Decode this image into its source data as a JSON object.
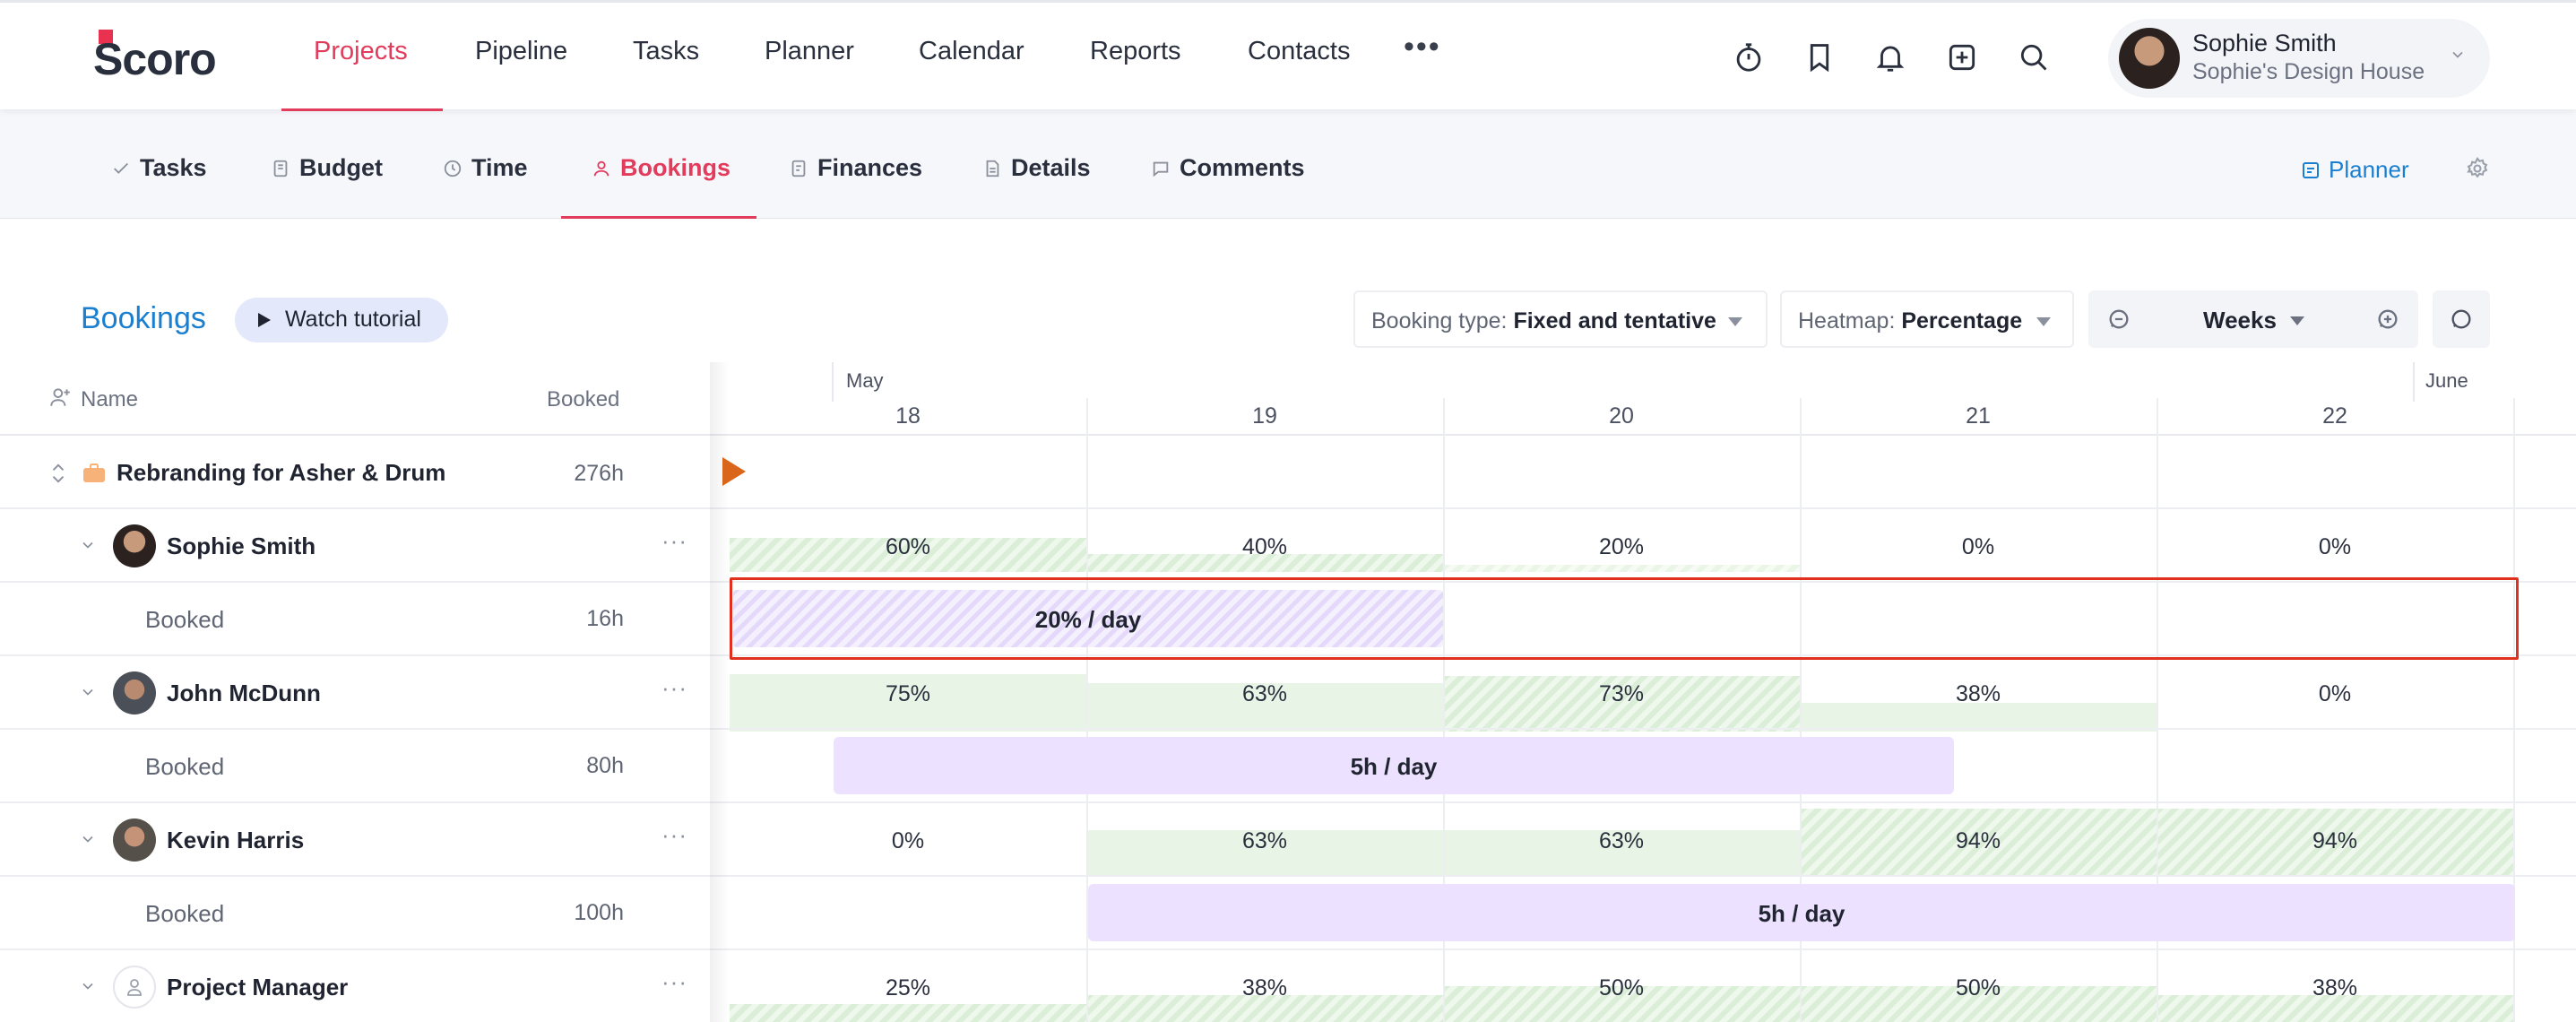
{
  "app": {
    "logo_text": "Scoro"
  },
  "nav": {
    "items": [
      "Projects",
      "Pipeline",
      "Tasks",
      "Planner",
      "Calendar",
      "Reports",
      "Contacts"
    ],
    "more": "•••"
  },
  "user": {
    "name": "Sophie Smith",
    "org": "Sophie's Design House"
  },
  "subnav": {
    "items": [
      "Tasks",
      "Budget",
      "Time",
      "Bookings",
      "Finances",
      "Details",
      "Comments"
    ],
    "planner": "Planner"
  },
  "toolbar": {
    "title": "Bookings",
    "tutorial": "Watch tutorial",
    "booking_type_label": "Booking type:",
    "booking_type_value": "Fixed and tentative",
    "heatmap_label": "Heatmap:",
    "heatmap_value": "Percentage",
    "period": "Weeks"
  },
  "table": {
    "col_name": "Name",
    "col_booked": "Booked",
    "months": [
      "May",
      "June"
    ],
    "days": [
      "18",
      "19",
      "20",
      "21",
      "22"
    ],
    "project": {
      "name": "Rebranding for Asher & Drum",
      "booked": "276h"
    },
    "people": [
      {
        "name": "Sophie Smith",
        "booked_label": "Booked",
        "booked": "16h",
        "load": [
          "60%",
          "40%",
          "20%",
          "0%",
          "0%"
        ],
        "bar": "20% / day"
      },
      {
        "name": "John McDunn",
        "booked_label": "Booked",
        "booked": "80h",
        "load": [
          "75%",
          "63%",
          "73%",
          "38%",
          "0%"
        ],
        "bar": "5h / day"
      },
      {
        "name": "Kevin Harris",
        "booked_label": "Booked",
        "booked": "100h",
        "load": [
          "0%",
          "63%",
          "63%",
          "94%",
          "94%"
        ],
        "bar": "5h / day"
      },
      {
        "name": "Project Manager",
        "load": [
          "25%",
          "38%",
          "50%",
          "50%",
          "38%"
        ]
      }
    ]
  },
  "colors": {
    "accent": "#e23b5c",
    "link": "#1b7fd0",
    "booking": "#ece1ff",
    "heat": "#e8f4e6",
    "highlight": "#e0301e"
  }
}
